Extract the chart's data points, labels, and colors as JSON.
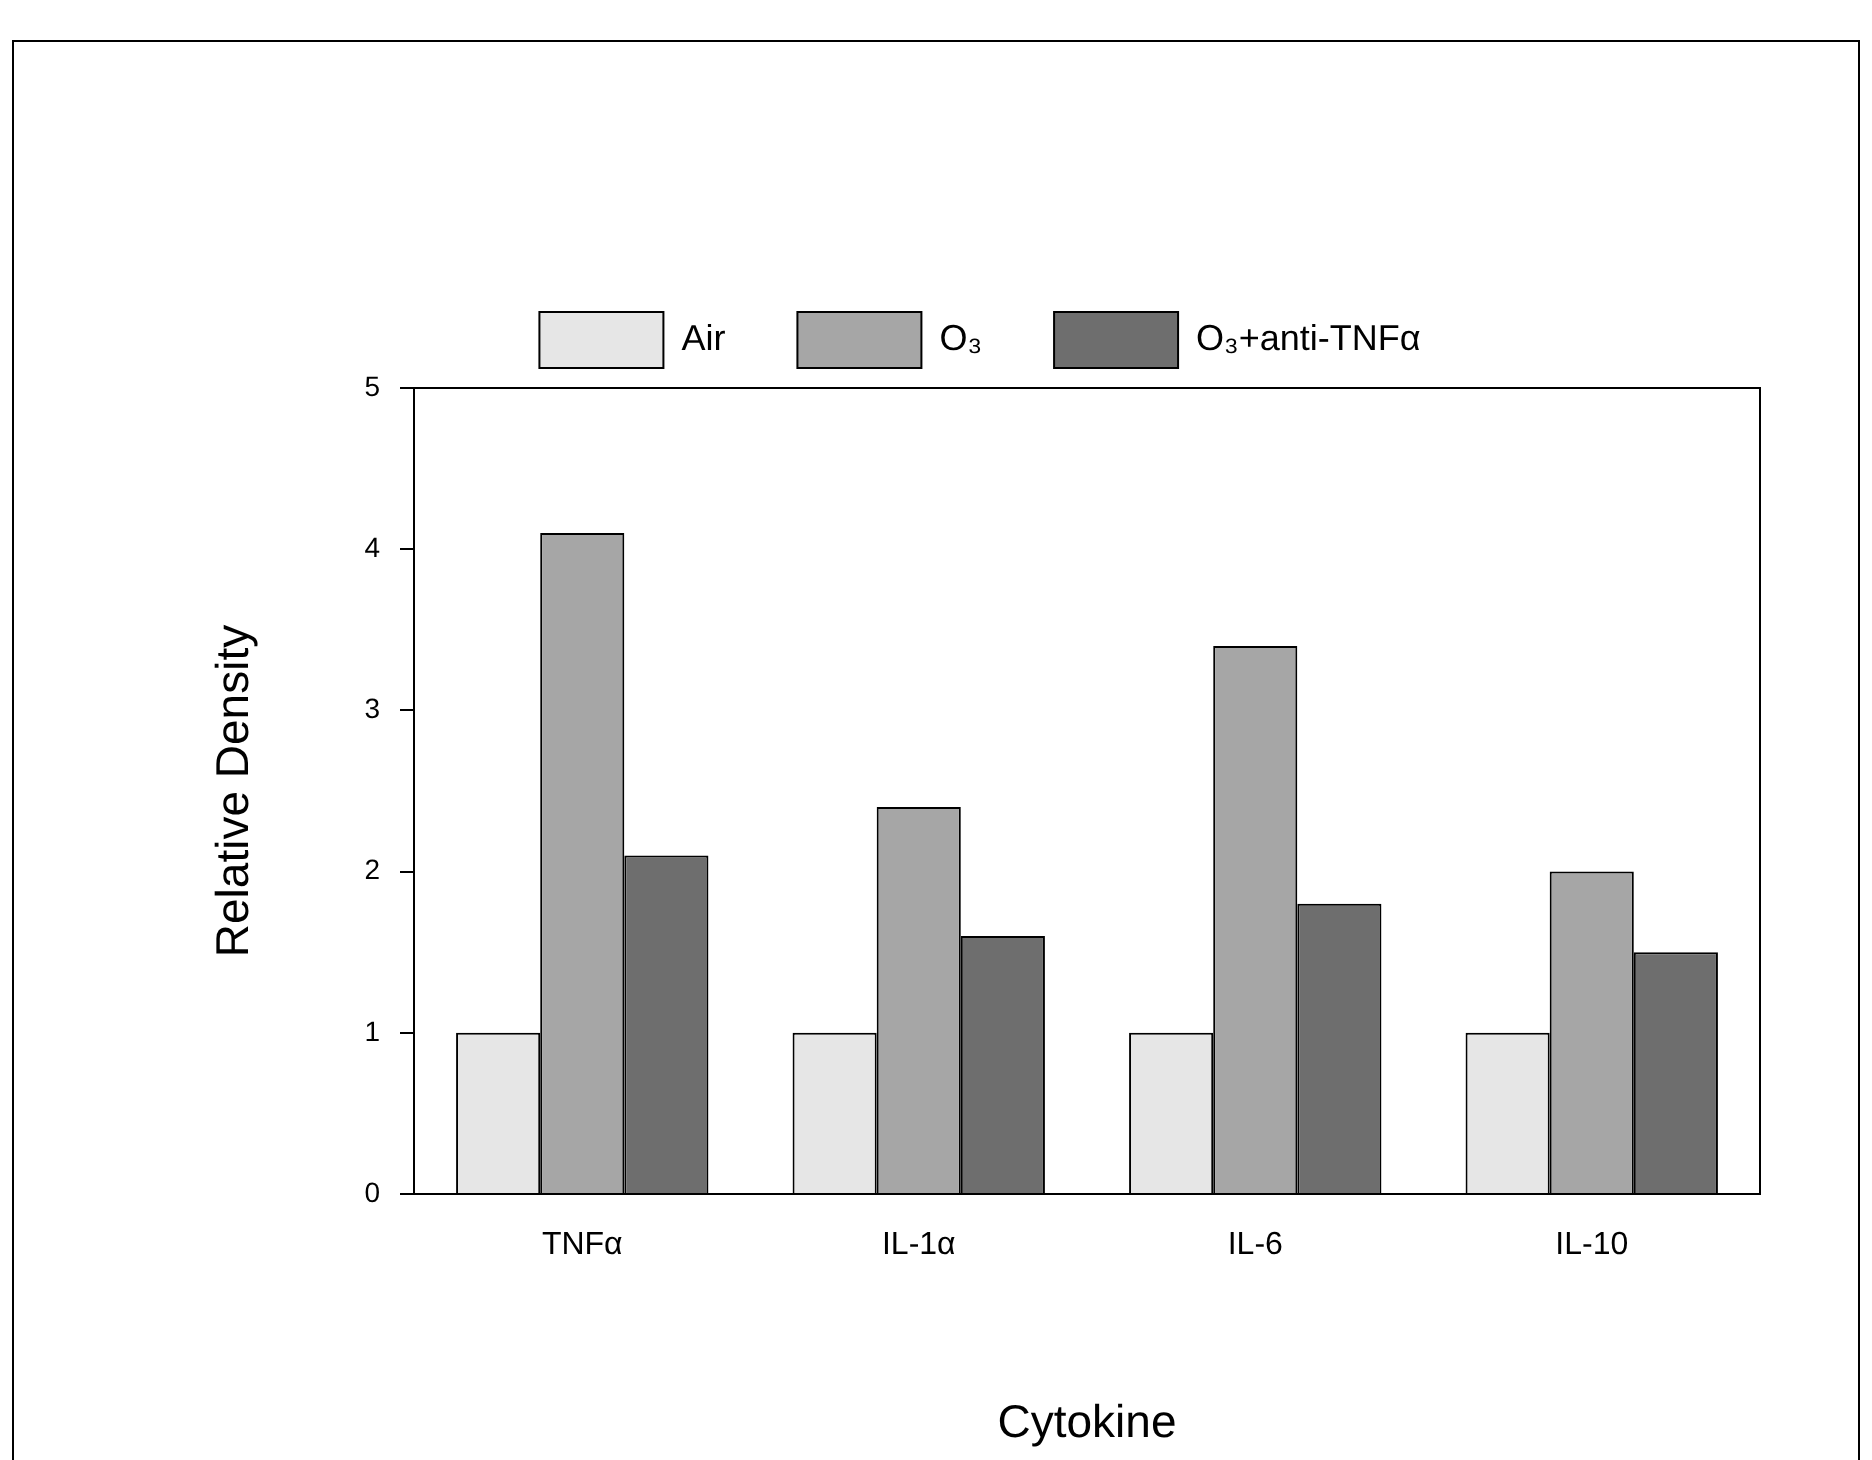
{
  "chart_data": {
    "type": "bar",
    "xlabel": "Cytokine",
    "ylabel": "Relative Density",
    "categories": [
      "TNFα",
      "IL-1α",
      "IL-6",
      "IL-10"
    ],
    "series": [
      {
        "name": "Air",
        "color": "#e6e6e6",
        "values": [
          1,
          1,
          1,
          1
        ]
      },
      {
        "name": "O₃",
        "color": "#a6a6a6",
        "values": [
          4.1,
          2.4,
          3.4,
          2.0
        ]
      },
      {
        "name": "O₃+anti-TNFα",
        "color": "#6e6e6e",
        "values": [
          2.1,
          1.6,
          1.8,
          1.5
        ]
      }
    ],
    "ylim": [
      0,
      5
    ],
    "yticks": [
      0,
      1,
      2,
      3,
      4,
      5
    ],
    "legend": "top"
  }
}
